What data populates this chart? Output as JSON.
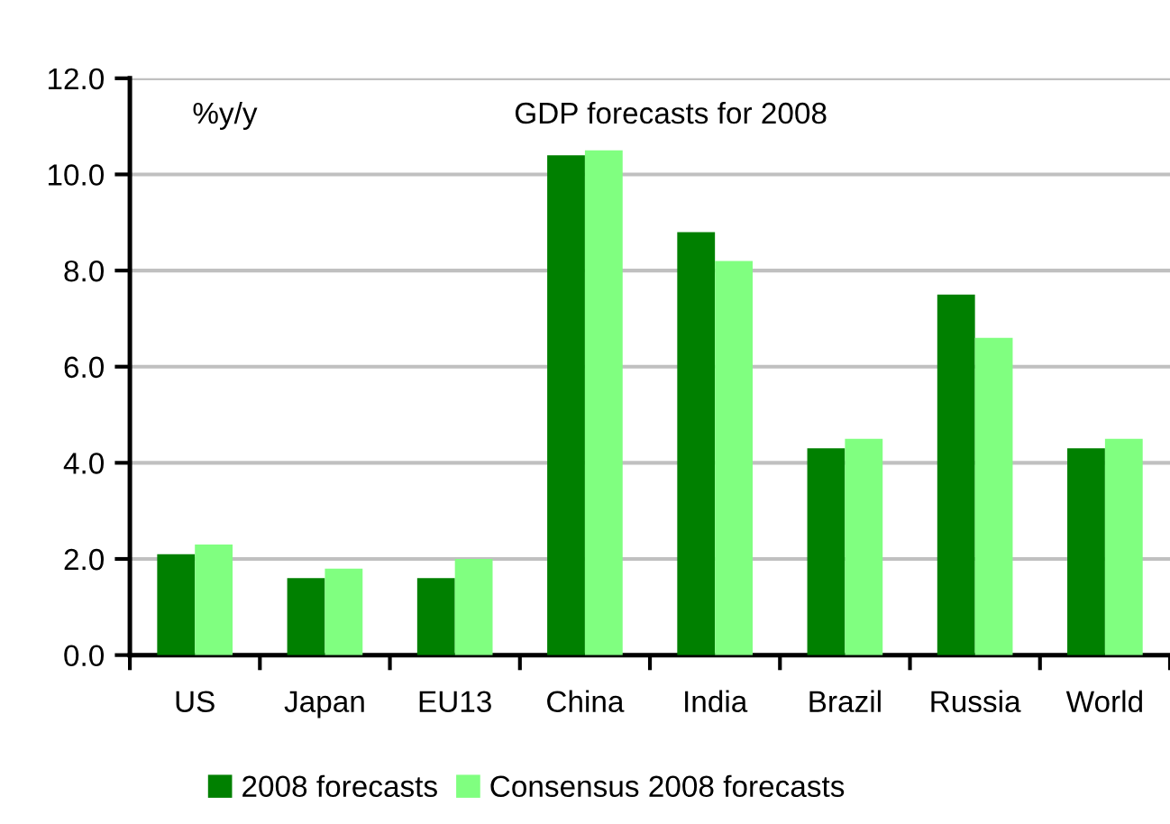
{
  "chart_data": {
    "type": "bar",
    "title": "GDP forecasts for 2008",
    "ylabel": "%y/y",
    "categories": [
      "US",
      "Japan",
      "EU13",
      "China",
      "India",
      "Brazil",
      "Russia",
      "World"
    ],
    "series": [
      {
        "name": "2008 forecasts",
        "color": "#008000",
        "values": [
          2.1,
          1.6,
          1.6,
          10.4,
          8.8,
          4.3,
          7.5,
          4.3
        ]
      },
      {
        "name": "Consensus 2008 forecasts",
        "color": "#80ff80",
        "values": [
          2.3,
          1.8,
          2.0,
          10.5,
          8.2,
          4.5,
          6.6,
          4.5
        ]
      }
    ],
    "ylim": [
      0,
      12
    ],
    "yticks": [
      {
        "value": 0,
        "label": "0.0"
      },
      {
        "value": 2,
        "label": "2.0"
      },
      {
        "value": 4,
        "label": "4.0"
      },
      {
        "value": 6,
        "label": "6.0"
      },
      {
        "value": 8,
        "label": "8.0"
      },
      {
        "value": 10,
        "label": "10.0"
      },
      {
        "value": 12,
        "label": "12.0"
      }
    ],
    "grid": "y",
    "legend": "bottom"
  }
}
